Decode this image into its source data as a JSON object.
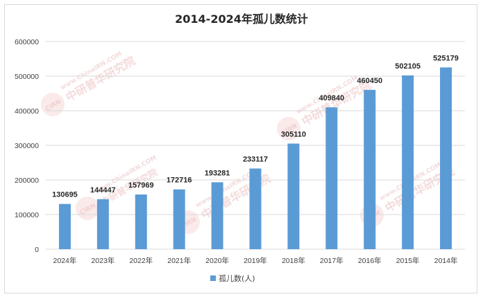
{
  "chart_data": {
    "type": "bar",
    "title": "2014-2024年孤儿数统计",
    "categories": [
      "2024年",
      "2023年",
      "2022年",
      "2021年",
      "2020年",
      "2019年",
      "2018年",
      "2017年",
      "2016年",
      "2015年",
      "2014年"
    ],
    "series": [
      {
        "name": "孤儿数(人)",
        "values": [
          130695,
          144447,
          157969,
          172716,
          193281,
          233117,
          305110,
          409840,
          460450,
          502105,
          525179
        ]
      }
    ],
    "ylim": [
      0,
      600000
    ],
    "yticks": [
      0,
      100000,
      200000,
      300000,
      400000,
      500000,
      600000
    ],
    "grid": true,
    "legend_position": "bottom",
    "bar_color": "#5b9bd5"
  },
  "watermark": {
    "text": "中研普华研究院",
    "url_text": "www.ChinaIRN.COM",
    "badge": "CIRN"
  }
}
